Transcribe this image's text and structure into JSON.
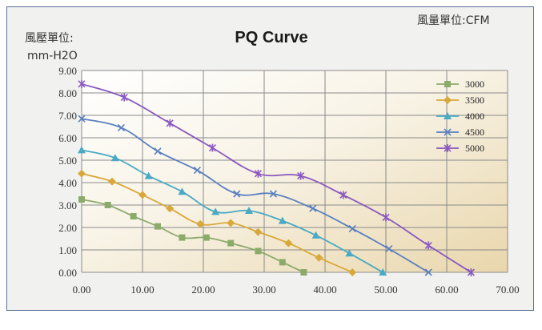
{
  "chart_data": {
    "type": "line",
    "title": "PQ Curve",
    "ylabel": "風壓單位:",
    "ylabel_unit": "mm-H2O",
    "xunit_label": "風量單位:CFM",
    "xlim": [
      0,
      70
    ],
    "ylim": [
      0,
      9
    ],
    "x_ticks": [
      "0.00",
      "10.00",
      "20.00",
      "30.00",
      "40.00",
      "50.00",
      "60.00",
      "70.00"
    ],
    "y_ticks": [
      "0.00",
      "1.00",
      "2.00",
      "3.00",
      "4.00",
      "5.00",
      "6.00",
      "7.00",
      "8.00",
      "9.00"
    ],
    "grid": true,
    "legend_position": "right",
    "series": [
      {
        "name": "3000",
        "color": "#8cab6b",
        "marker": "square",
        "x": [
          0,
          4.3,
          8.5,
          12.5,
          16.5,
          20.5,
          24.5,
          29,
          33,
          36.5
        ],
        "y": [
          3.25,
          3.0,
          2.5,
          2.05,
          1.55,
          1.55,
          1.3,
          0.95,
          0.45,
          0.0
        ]
      },
      {
        "name": "3500",
        "color": "#d9a83a",
        "marker": "diamond",
        "x": [
          0,
          5,
          10,
          14.5,
          19.5,
          24.5,
          29,
          34,
          39,
          44.5
        ],
        "y": [
          4.4,
          4.05,
          3.45,
          2.85,
          2.15,
          2.2,
          1.8,
          1.3,
          0.65,
          0.0
        ]
      },
      {
        "name": "4000",
        "color": "#4aa9c4",
        "marker": "triangle",
        "x": [
          0,
          5.5,
          11,
          16.5,
          22,
          27.5,
          33,
          38.5,
          44,
          49.5
        ],
        "y": [
          5.45,
          5.1,
          4.3,
          3.6,
          2.7,
          2.75,
          2.3,
          1.65,
          0.85,
          0.0
        ]
      },
      {
        "name": "4500",
        "color": "#5a7fc0",
        "marker": "x",
        "x": [
          0,
          6.5,
          12.5,
          19,
          25.5,
          31.5,
          38,
          44.5,
          50.5,
          57
        ],
        "y": [
          6.85,
          6.45,
          5.4,
          4.55,
          3.5,
          3.5,
          2.85,
          1.95,
          1.05,
          0.0
        ]
      },
      {
        "name": "5000",
        "color": "#8a58c0",
        "marker": "star",
        "x": [
          0,
          7,
          14.5,
          21.5,
          29,
          36,
          43,
          50,
          57,
          64
        ],
        "y": [
          8.4,
          7.8,
          6.65,
          5.55,
          4.4,
          4.3,
          3.45,
          2.45,
          1.2,
          0.0
        ]
      }
    ]
  }
}
